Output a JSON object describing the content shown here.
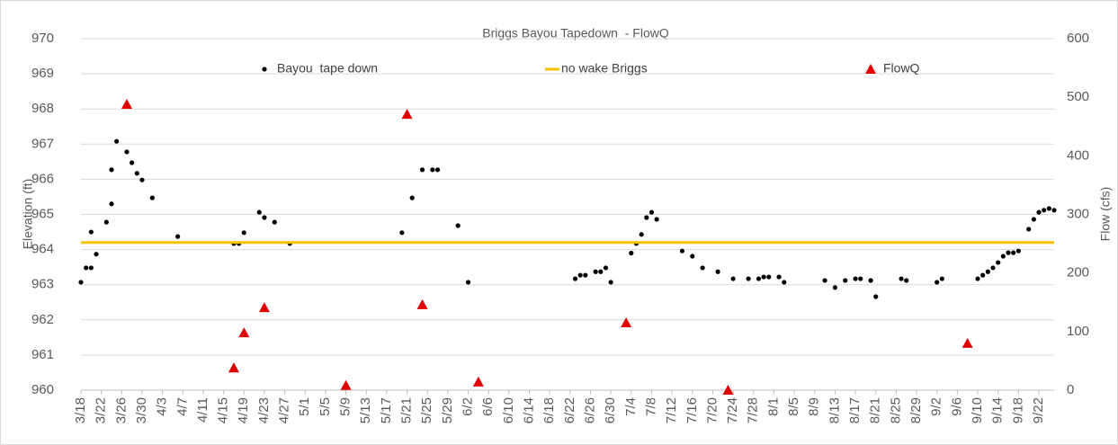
{
  "chart_data": {
    "type": "scatter",
    "title": "Briggs Bayou Tapedown  - FlowQ",
    "y_label": "Elevation (ft)",
    "y2_label": "Flow (cfs)",
    "xlim": [
      0,
      191
    ],
    "xticks": [
      {
        "value": 0,
        "label": "3/18"
      },
      {
        "value": 4,
        "label": "3/22"
      },
      {
        "value": 8,
        "label": "3/26"
      },
      {
        "value": 12,
        "label": "3/30"
      },
      {
        "value": 16,
        "label": "4/3"
      },
      {
        "value": 20,
        "label": "4/7"
      },
      {
        "value": 24,
        "label": "4/11"
      },
      {
        "value": 28,
        "label": "4/15"
      },
      {
        "value": 32,
        "label": "4/19"
      },
      {
        "value": 36,
        "label": "4/23"
      },
      {
        "value": 40,
        "label": "4/27"
      },
      {
        "value": 44,
        "label": "5/1"
      },
      {
        "value": 48,
        "label": "5/5"
      },
      {
        "value": 52,
        "label": "5/9"
      },
      {
        "value": 56,
        "label": "5/13"
      },
      {
        "value": 60,
        "label": "5/17"
      },
      {
        "value": 64,
        "label": "5/21"
      },
      {
        "value": 68,
        "label": "5/25"
      },
      {
        "value": 72,
        "label": "5/29"
      },
      {
        "value": 76,
        "label": "6/2"
      },
      {
        "value": 80,
        "label": "6/6"
      },
      {
        "value": 84,
        "label": "6/10"
      },
      {
        "value": 88,
        "label": "6/14"
      },
      {
        "value": 92,
        "label": "6/18"
      },
      {
        "value": 96,
        "label": "6/22"
      },
      {
        "value": 100,
        "label": "6/26"
      },
      {
        "value": 104,
        "label": "6/30"
      },
      {
        "value": 108,
        "label": "7/4"
      },
      {
        "value": 112,
        "label": "7/8"
      },
      {
        "value": 116,
        "label": "7/12"
      },
      {
        "value": 120,
        "label": "7/16"
      },
      {
        "value": 124,
        "label": "7/20"
      },
      {
        "value": 128,
        "label": "7/24"
      },
      {
        "value": 132,
        "label": "7/28"
      },
      {
        "value": 136,
        "label": "8/1"
      },
      {
        "value": 140,
        "label": "8/5"
      },
      {
        "value": 144,
        "label": "8/9"
      },
      {
        "value": 148,
        "label": "8/13"
      },
      {
        "value": 152,
        "label": "8/17"
      },
      {
        "value": 156,
        "label": "8/21"
      },
      {
        "value": 160,
        "label": "8/25"
      },
      {
        "value": 164,
        "label": "8/29"
      },
      {
        "value": 168,
        "label": "9/2"
      },
      {
        "value": 172,
        "label": "9/6"
      },
      {
        "value": 176,
        "label": "9/10"
      },
      {
        "value": 180,
        "label": "9/14"
      },
      {
        "value": 184,
        "label": "9/18"
      },
      {
        "value": 188,
        "label": "9/22"
      }
    ],
    "ylim": [
      960,
      970
    ],
    "yticks": [
      960,
      961,
      962,
      963,
      964,
      965,
      966,
      967,
      968,
      969,
      970
    ],
    "y2lim": [
      0,
      600
    ],
    "y2ticks": [
      0,
      100,
      200,
      300,
      400,
      500,
      600
    ],
    "grid": true,
    "legend": "top",
    "series": [
      {
        "name": "Bayou  tape down",
        "type": "scatter",
        "marker": "circle",
        "color": "#000000",
        "x": [
          0,
          1,
          2,
          2,
          3,
          5,
          6,
          6,
          7,
          9,
          10,
          11,
          12,
          14,
          19,
          30,
          31,
          32,
          35,
          36,
          38,
          41,
          63,
          65,
          67,
          69,
          70,
          74,
          76,
          97,
          98,
          99,
          101,
          102,
          103,
          104,
          108,
          109,
          110,
          111,
          112,
          113,
          118,
          120,
          122,
          125,
          128,
          131,
          133,
          134,
          135,
          137,
          138,
          146,
          148,
          150,
          152,
          153,
          155,
          156,
          161,
          162,
          168,
          169,
          176,
          177,
          178,
          179,
          180,
          181,
          182,
          183,
          184,
          186,
          187,
          188,
          189,
          190,
          191
        ],
        "values": [
          963.07,
          963.48,
          963.48,
          964.5,
          963.87,
          964.78,
          965.3,
          966.27,
          967.08,
          966.78,
          966.47,
          966.17,
          965.98,
          965.47,
          964.37,
          964.17,
          964.17,
          964.48,
          965.06,
          964.91,
          964.78,
          964.17,
          964.48,
          965.47,
          966.27,
          966.27,
          966.27,
          964.68,
          963.07,
          963.17,
          963.27,
          963.27,
          963.37,
          963.37,
          963.48,
          963.07,
          963.9,
          964.17,
          964.43,
          964.91,
          965.06,
          964.86,
          963.96,
          963.81,
          963.48,
          963.37,
          963.17,
          963.17,
          963.17,
          963.22,
          963.22,
          963.22,
          963.07,
          963.12,
          962.92,
          963.12,
          963.17,
          963.17,
          963.12,
          962.66,
          963.17,
          963.12,
          963.07,
          963.17,
          963.17,
          963.27,
          963.37,
          963.48,
          963.63,
          963.81,
          963.91,
          963.91,
          963.96,
          964.58,
          964.86,
          965.06,
          965.12,
          965.17,
          965.12
        ]
      },
      {
        "name": "no wake Briggs",
        "type": "line",
        "color": "#f5c000",
        "x": [
          0,
          191
        ],
        "values": [
          964.2,
          964.2
        ]
      },
      {
        "name": "FlowQ",
        "type": "scatter",
        "marker": "triangle",
        "color": "#e00000",
        "axis": "y2",
        "x": [
          9,
          30,
          32,
          36,
          52,
          64,
          67,
          78,
          107,
          127,
          174
        ],
        "values": [
          488,
          38,
          98,
          141,
          8,
          471,
          146,
          14,
          115,
          0,
          80
        ]
      }
    ]
  }
}
